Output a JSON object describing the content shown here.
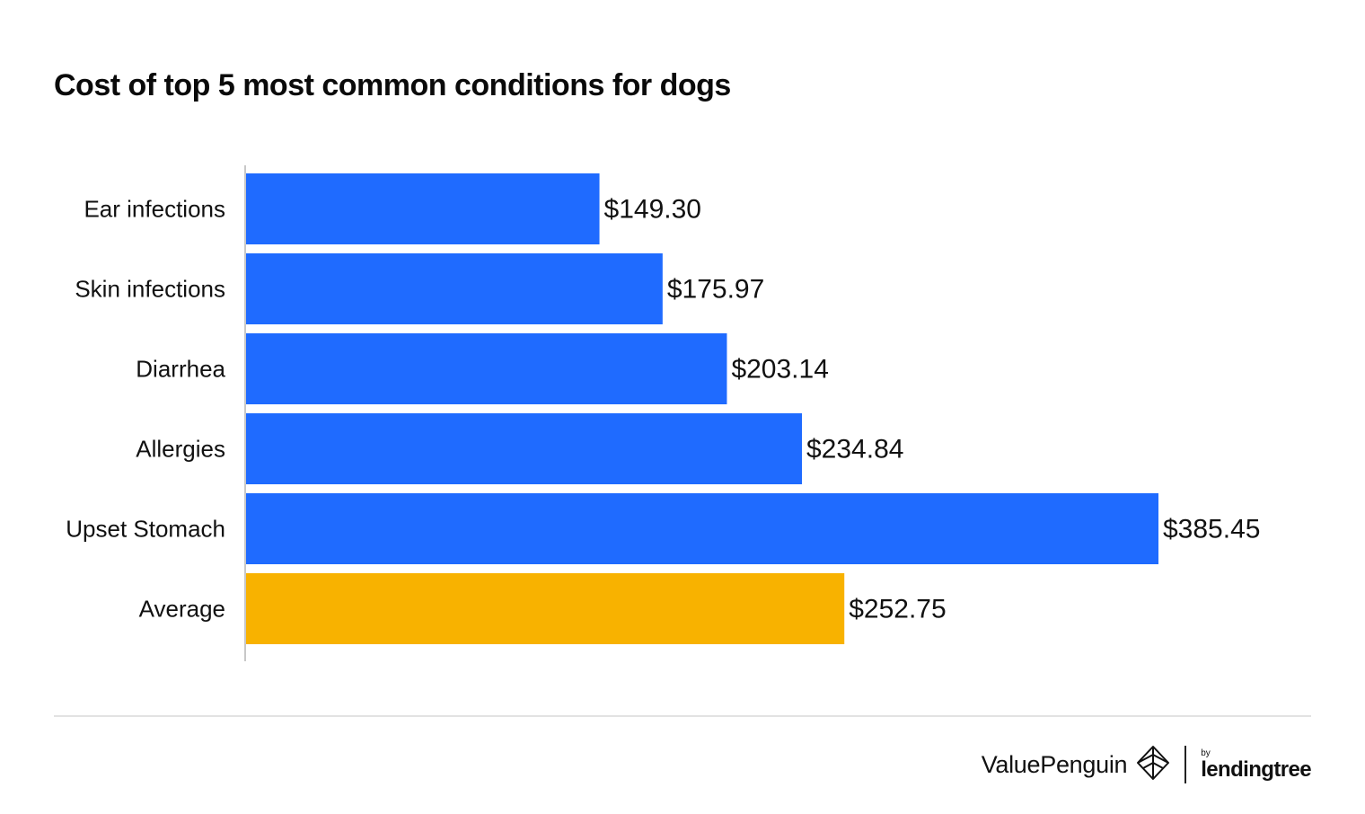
{
  "chart_data": {
    "type": "bar",
    "orientation": "horizontal",
    "title": "Cost of top 5 most common conditions for dogs",
    "categories": [
      "Ear infections",
      "Skin infections",
      "Diarrhea",
      "Allergies",
      "Upset Stomach",
      "Average"
    ],
    "values": [
      149.3,
      175.97,
      203.14,
      234.84,
      385.45,
      252.75
    ],
    "value_labels": [
      "$149.30",
      "$175.97",
      "$203.14",
      "$234.84",
      "$385.45",
      "$252.75"
    ],
    "colors": [
      "#1f6bff",
      "#1f6bff",
      "#1f6bff",
      "#1f6bff",
      "#1f6bff",
      "#f8b200"
    ],
    "xlim": [
      0,
      385.45
    ],
    "xlabel": "",
    "ylabel": "",
    "grid": false,
    "legend": "none"
  },
  "colors": {
    "bar": "#1f6bff",
    "average_bar": "#f8b200",
    "axis": "#c8c8c8"
  },
  "footer": {
    "brand_primary": "ValuePenguin",
    "brand_by": "by",
    "brand_secondary": "lendingtree",
    "logo_icon": "valuepenguin-logo-icon"
  }
}
